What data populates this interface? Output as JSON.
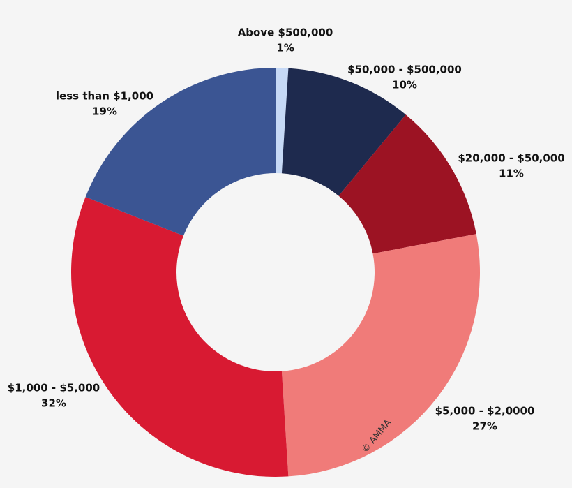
{
  "chart_data": {
    "type": "donut",
    "categories": [
      "Above $500,000",
      "$50,000 - $500,000",
      "$20,000 - $50,000",
      "$5,000 - $2,0000",
      "$1,000 - $5,000",
      "less than $1,000"
    ],
    "values": [
      1,
      10,
      11,
      27,
      32,
      19
    ],
    "value_labels": [
      "1%",
      "10%",
      "11%",
      "27%",
      "32%",
      "19%"
    ],
    "colors": [
      "#c6d9f6",
      "#1e2a4e",
      "#9c1323",
      "#f07b79",
      "#d81a32",
      "#3b5593"
    ],
    "watermark": "© AMMA"
  }
}
